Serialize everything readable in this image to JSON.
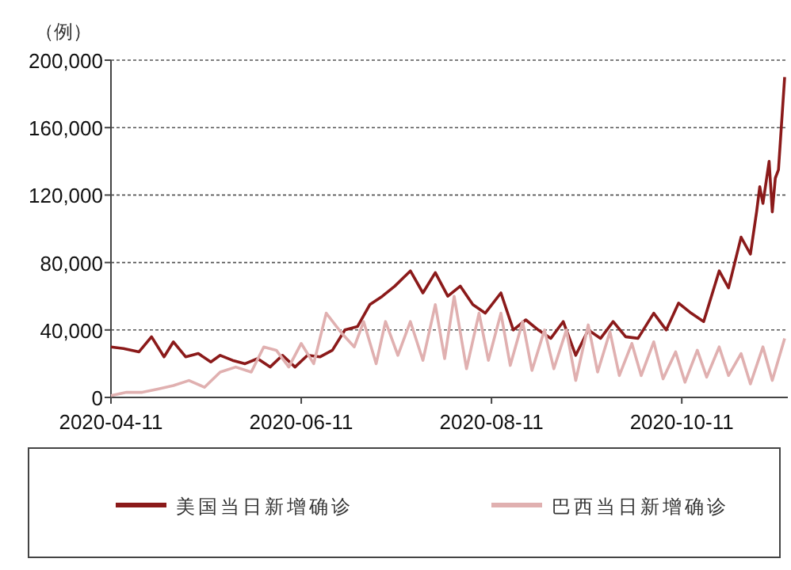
{
  "chart_data": {
    "type": "line",
    "ylabel": "（例）",
    "x": [
      "2020-04-11",
      "2020-04-15",
      "2020-04-20",
      "2020-04-24",
      "2020-04-28",
      "2020-05-01",
      "2020-05-05",
      "2020-05-09",
      "2020-05-13",
      "2020-05-16",
      "2020-05-20",
      "2020-05-24",
      "2020-05-28",
      "2020-06-01",
      "2020-06-05",
      "2020-06-09",
      "2020-06-13",
      "2020-06-17",
      "2020-06-21",
      "2020-06-25",
      "2020-06-29",
      "2020-07-03",
      "2020-07-07",
      "2020-07-11",
      "2020-07-16",
      "2020-07-20",
      "2020-07-24",
      "2020-07-28",
      "2020-08-01",
      "2020-08-05",
      "2020-08-09",
      "2020-08-14",
      "2020-08-18",
      "2020-08-22",
      "2020-08-26",
      "2020-08-30",
      "2020-09-03",
      "2020-09-07",
      "2020-09-11",
      "2020-09-15",
      "2020-09-19",
      "2020-09-23",
      "2020-09-27",
      "2020-10-02",
      "2020-10-06",
      "2020-10-10",
      "2020-10-14",
      "2020-10-18",
      "2020-10-23",
      "2020-10-26",
      "2020-10-30",
      "2020-11-02",
      "2020-11-04",
      "2020-11-05",
      "2020-11-06",
      "2020-11-08",
      "2020-11-09",
      "2020-11-10",
      "2020-11-11",
      "2020-11-13"
    ],
    "series": [
      {
        "name": "美国当日新增确诊",
        "color": "#8b1a1a",
        "values": [
          30000,
          29000,
          27000,
          36000,
          24000,
          33000,
          24000,
          26000,
          21000,
          25000,
          22000,
          20000,
          23000,
          18000,
          25000,
          18000,
          25000,
          24000,
          28000,
          40000,
          42000,
          55000,
          60000,
          66000,
          75000,
          62000,
          74000,
          60000,
          66000,
          55000,
          50000,
          62000,
          40000,
          46000,
          40000,
          35000,
          45000,
          25000,
          40000,
          35000,
          45000,
          36000,
          35000,
          50000,
          40000,
          56000,
          50000,
          45000,
          75000,
          65000,
          95000,
          85000,
          110000,
          125000,
          115000,
          140000,
          110000,
          130000,
          135000,
          190000
        ]
      },
      {
        "name": "巴西当日新增确诊",
        "color": "#e0b0b0",
        "x": [
          "2020-04-11",
          "2020-04-16",
          "2020-04-21",
          "2020-04-26",
          "2020-05-01",
          "2020-05-06",
          "2020-05-11",
          "2020-05-16",
          "2020-05-21",
          "2020-05-26",
          "2020-05-30",
          "2020-06-03",
          "2020-06-07",
          "2020-06-11",
          "2020-06-15",
          "2020-06-19",
          "2020-06-24",
          "2020-06-28",
          "2020-07-01",
          "2020-07-05",
          "2020-07-08",
          "2020-07-12",
          "2020-07-16",
          "2020-07-20",
          "2020-07-24",
          "2020-07-27",
          "2020-07-30",
          "2020-08-03",
          "2020-08-07",
          "2020-08-10",
          "2020-08-14",
          "2020-08-17",
          "2020-08-21",
          "2020-08-24",
          "2020-08-28",
          "2020-08-31",
          "2020-09-04",
          "2020-09-07",
          "2020-09-11",
          "2020-09-14",
          "2020-09-18",
          "2020-09-21",
          "2020-09-25",
          "2020-09-28",
          "2020-10-02",
          "2020-10-05",
          "2020-10-09",
          "2020-10-12",
          "2020-10-16",
          "2020-10-19",
          "2020-10-23",
          "2020-10-26",
          "2020-10-30",
          "2020-11-02",
          "2020-11-06",
          "2020-11-09",
          "2020-11-13"
        ],
        "values": [
          1000,
          3000,
          3000,
          5000,
          7000,
          10000,
          6000,
          15000,
          18000,
          15000,
          30000,
          28000,
          18000,
          32000,
          20000,
          50000,
          38000,
          30000,
          45000,
          20000,
          45000,
          25000,
          45000,
          22000,
          55000,
          23000,
          60000,
          17000,
          50000,
          22000,
          50000,
          19000,
          45000,
          16000,
          40000,
          17000,
          40000,
          10000,
          43000,
          15000,
          39000,
          13000,
          32000,
          13000,
          33000,
          11000,
          27000,
          9000,
          28000,
          12000,
          30000,
          13000,
          26000,
          8000,
          30000,
          10000,
          35000
        ]
      }
    ],
    "xlim": [
      "2020-04-11",
      "2020-11-14"
    ],
    "xticks": [
      {
        "value": "2020-04-11",
        "label": "2020-04-11"
      },
      {
        "value": "2020-06-11",
        "label": "2020-06-11"
      },
      {
        "value": "2020-08-11",
        "label": "2020-08-11"
      },
      {
        "value": "2020-10-11",
        "label": "2020-10-11"
      }
    ],
    "ylim": [
      0,
      200000
    ],
    "yticks": [
      0,
      {
        "value": 40000,
        "label": "40,000"
      },
      {
        "value": 80000,
        "label": "80,000"
      },
      {
        "value": 120000,
        "label": "120,000"
      },
      {
        "value": 160000,
        "label": "160,000"
      },
      {
        "value": 200000,
        "label": "200,000"
      }
    ],
    "grid": "y",
    "legend": "bottom",
    "line_style": "solid",
    "marker": "none"
  }
}
